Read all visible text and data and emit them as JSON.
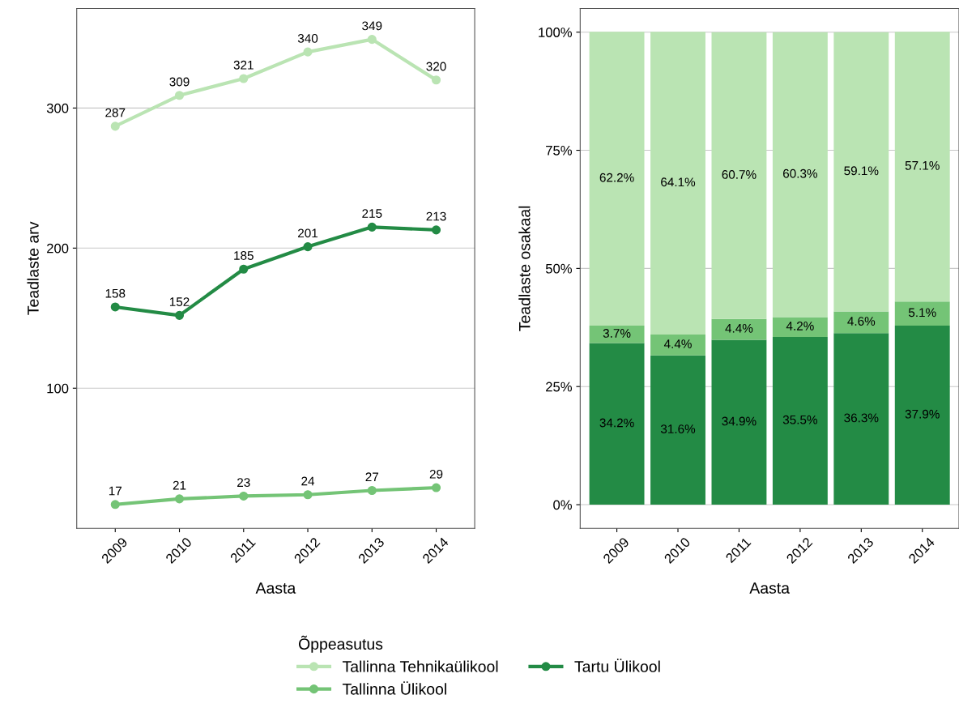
{
  "chart_data": [
    {
      "type": "line",
      "xlabel": "Aasta",
      "ylabel": "Teadlaste arv",
      "categories": [
        "2009",
        "2010",
        "2011",
        "2012",
        "2013",
        "2014"
      ],
      "series": [
        {
          "name": "Tallinna Tehnikaülikool",
          "color": "#bae4b3",
          "values": [
            287,
            309,
            321,
            340,
            349,
            320
          ]
        },
        {
          "name": "Tallinna Ülikool",
          "color": "#74c476",
          "values": [
            17,
            21,
            23,
            24,
            27,
            29
          ]
        },
        {
          "name": "Tartu Ülikool",
          "color": "#238b45",
          "values": [
            158,
            152,
            185,
            201,
            215,
            213
          ]
        }
      ],
      "ylim": [
        0,
        371
      ],
      "yticks": [
        100,
        200,
        300
      ],
      "grid": "y",
      "marker": "circle",
      "line_style": "solid",
      "data_labels": true,
      "legend": "bottom",
      "legend_title": "Õppeasutus"
    },
    {
      "type": "bar",
      "stacked": true,
      "xlabel": "Aasta",
      "ylabel": "Teadlaste osakaal",
      "categories": [
        "2009",
        "2010",
        "2011",
        "2012",
        "2013",
        "2014"
      ],
      "series": [
        {
          "color": "#238b45",
          "values": [
            34.2,
            31.6,
            34.9,
            35.5,
            36.3,
            37.9
          ],
          "value_labels": [
            "34.2%",
            "31.6%",
            "34.9%",
            "35.5%",
            "36.3%",
            "37.9%"
          ]
        },
        {
          "color": "#74c476",
          "values": [
            3.7,
            4.4,
            4.4,
            4.2,
            4.6,
            5.1
          ],
          "value_labels": [
            "3.7%",
            "4.4%",
            "4.4%",
            "4.2%",
            "4.6%",
            "5.1%"
          ]
        },
        {
          "color": "#bae4b3",
          "values": [
            62.2,
            64.1,
            60.7,
            60.3,
            59.1,
            57.1
          ],
          "value_labels": [
            "62.2%",
            "64.1%",
            "60.7%",
            "60.3%",
            "59.1%",
            "57.1%"
          ]
        }
      ],
      "ylim": [
        -5,
        105
      ],
      "yticks": [
        {
          "value": 0,
          "label": "0%"
        },
        {
          "value": 25,
          "label": "25%"
        },
        {
          "value": 50,
          "label": "50%"
        },
        {
          "value": 75,
          "label": "75%"
        },
        {
          "value": 100,
          "label": "100%"
        }
      ],
      "grid": "y"
    }
  ]
}
